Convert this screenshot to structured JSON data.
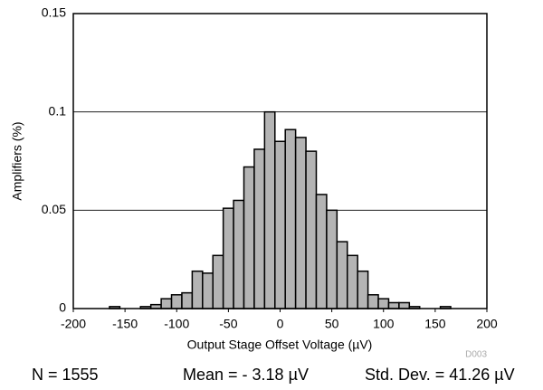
{
  "chart_data": {
    "type": "histogram",
    "xlabel": "Output Stage Offset Voltage (µV)",
    "ylabel": "Amplifiers (%)",
    "bins": [
      -165,
      -155,
      -145,
      -135,
      -125,
      -115,
      -105,
      -95,
      -85,
      -75,
      -65,
      -55,
      -45,
      -35,
      -25,
      -15,
      -5,
      5,
      15,
      25,
      35,
      45,
      55,
      65,
      75,
      85,
      95,
      105,
      115,
      125,
      135,
      145,
      155,
      165
    ],
    "values": [
      0.001,
      0,
      0,
      0.001,
      0.002,
      0.005,
      0.007,
      0.008,
      0.019,
      0.018,
      0.027,
      0.051,
      0.055,
      0.072,
      0.081,
      0.1,
      0.085,
      0.091,
      0.087,
      0.08,
      0.058,
      0.05,
      0.034,
      0.027,
      0.019,
      0.007,
      0.005,
      0.003,
      0.003,
      0.001,
      0,
      0,
      0.001
    ],
    "color": "#b4b4b4",
    "xlim": [
      -200,
      200
    ],
    "xticks": [
      -200,
      -150,
      -100,
      -50,
      0,
      50,
      100,
      150,
      200
    ],
    "ylim": [
      0,
      0.15
    ],
    "yticks": [
      0,
      0.05,
      0.1,
      0.15
    ],
    "grid": true,
    "annotations": [
      "D003",
      "N = 1555",
      "Mean = - 3.18 µV",
      "Std. Dev. = 41.26 µV"
    ]
  }
}
